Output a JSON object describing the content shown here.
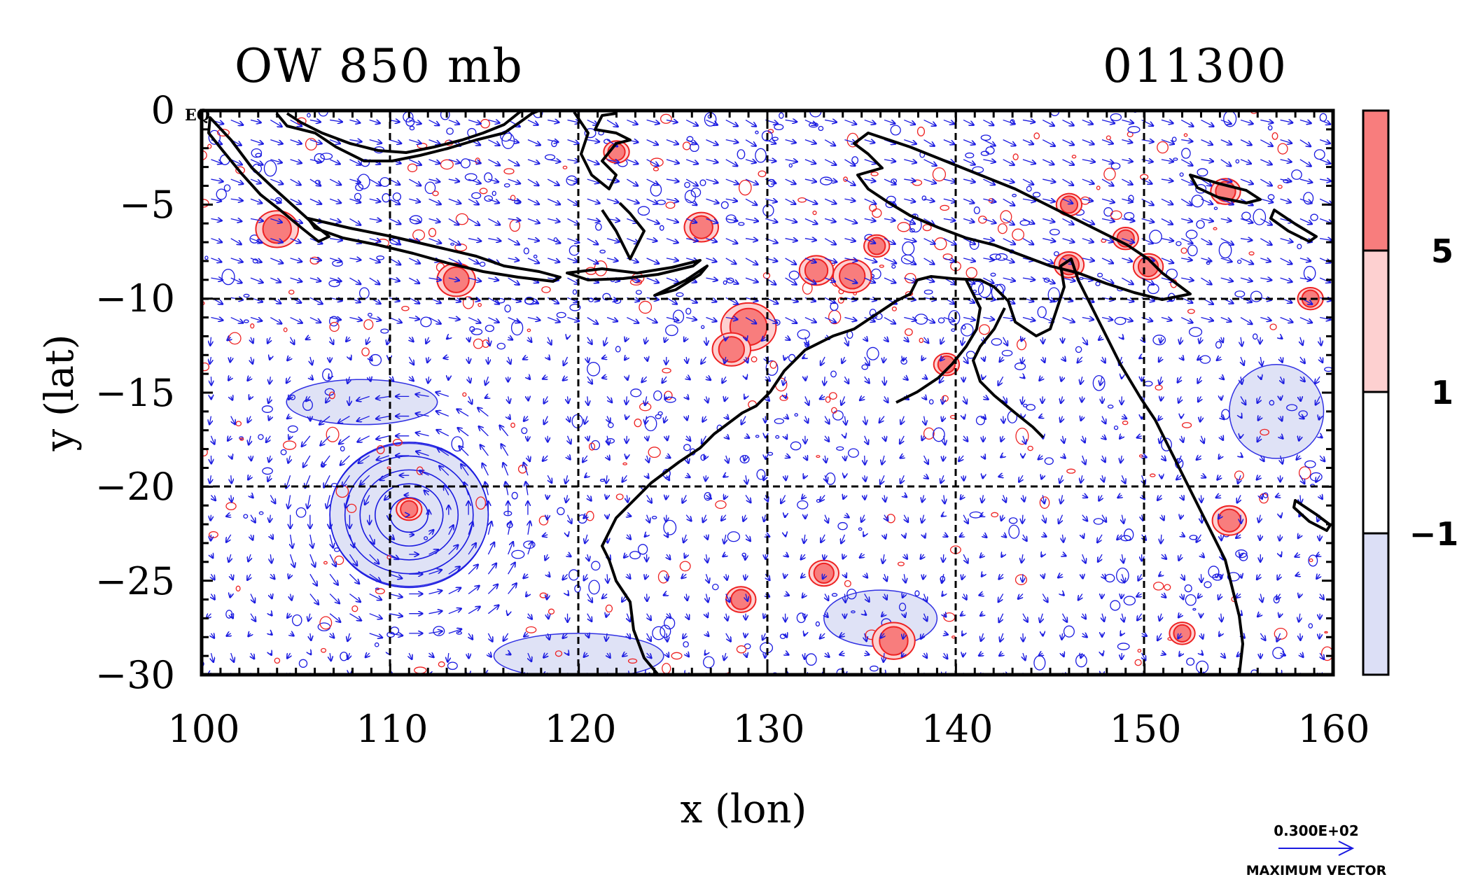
{
  "chart_data": {
    "type": "heatmap",
    "title": "OW 850 mb",
    "date_label": "011300",
    "corner_label": "EQ",
    "xlabel": "x (lon)",
    "ylabel": "y (lat)",
    "xlim": [
      100,
      160
    ],
    "ylim": [
      -30,
      0
    ],
    "x_ticks": [
      100,
      110,
      120,
      130,
      140,
      150,
      160
    ],
    "x_tick_labels": [
      "100",
      "110",
      "120",
      "130",
      "140",
      "150",
      "160"
    ],
    "y_ticks": [
      0,
      -5,
      -10,
      -15,
      -20,
      -25,
      -30
    ],
    "y_tick_labels": [
      "0",
      "−5",
      "−10",
      "−15",
      "−20",
      "−25",
      "−30"
    ],
    "grid": true,
    "colorbar": {
      "levels": [
        "5",
        "1",
        "−1"
      ],
      "colors": [
        "#f87d7d",
        "#fdd0d0",
        "#ffffff",
        "#dcdff6"
      ]
    },
    "contour_colors": {
      "positive": "#ee2222",
      "negative": "#1a1ae0"
    },
    "vector_color": "#1a1ae0",
    "coast_color": "#000000",
    "vector_legend": {
      "value": "0.300E+02",
      "caption": "MAXIMUM VECTOR"
    },
    "positive_ow_centers": [
      {
        "lon": 111,
        "lat": -21.2,
        "r": 0.6
      },
      {
        "lon": 129.0,
        "lat": -11.5,
        "r": 1.3
      },
      {
        "lon": 128.1,
        "lat": -12.7,
        "r": 0.9
      },
      {
        "lon": 104.0,
        "lat": -6.3,
        "r": 1.0
      },
      {
        "lon": 113.5,
        "lat": -9.0,
        "r": 0.9
      },
      {
        "lon": 126.5,
        "lat": -6.2,
        "r": 0.8
      },
      {
        "lon": 132.6,
        "lat": -8.5,
        "r": 0.8
      },
      {
        "lon": 134.5,
        "lat": -8.8,
        "r": 0.9
      },
      {
        "lon": 135.8,
        "lat": -7.2,
        "r": 0.6
      },
      {
        "lon": 146.0,
        "lat": -8.2,
        "r": 0.7
      },
      {
        "lon": 149.0,
        "lat": -6.8,
        "r": 0.6
      },
      {
        "lon": 150.2,
        "lat": -8.3,
        "r": 0.7
      },
      {
        "lon": 154.3,
        "lat": -4.3,
        "r": 0.7
      },
      {
        "lon": 158.8,
        "lat": -10.0,
        "r": 0.6
      },
      {
        "lon": 139.5,
        "lat": -13.5,
        "r": 0.6
      },
      {
        "lon": 154.5,
        "lat": -21.8,
        "r": 0.8
      },
      {
        "lon": 136.7,
        "lat": -28.2,
        "r": 1.0
      },
      {
        "lon": 133.0,
        "lat": -24.6,
        "r": 0.7
      },
      {
        "lon": 128.6,
        "lat": -26.0,
        "r": 0.7
      },
      {
        "lon": 146.0,
        "lat": -5.0,
        "r": 0.6
      },
      {
        "lon": 122.0,
        "lat": -2.2,
        "r": 0.6
      },
      {
        "lon": 152.0,
        "lat": -27.8,
        "r": 0.6
      }
    ],
    "negative_ow_regions": [
      {
        "lon": 111.0,
        "lat": -21.5,
        "rx": 4.2,
        "ry": 3.8
      },
      {
        "lon": 108.5,
        "lat": -15.5,
        "rx": 4.0,
        "ry": 1.2
      },
      {
        "lon": 136.0,
        "lat": -27.0,
        "rx": 3.0,
        "ry": 1.5
      },
      {
        "lon": 120.0,
        "lat": -29.0,
        "rx": 4.5,
        "ry": 1.2
      },
      {
        "lon": 157.0,
        "lat": -16.0,
        "rx": 2.5,
        "ry": 2.5
      }
    ],
    "cyclone_center": {
      "lon": 111.0,
      "lat": -21.5
    }
  }
}
